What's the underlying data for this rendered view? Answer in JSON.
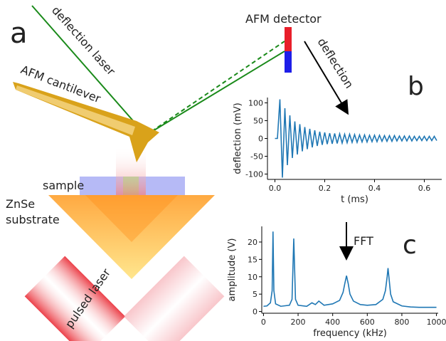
{
  "diagram": {
    "panel_a": "a",
    "panel_b": "b",
    "panel_c": "c",
    "deflection_laser": "deflection laser",
    "afm_detector": "AFM detector",
    "deflection": "deflection",
    "afm_cantilever": "AFM cantilever",
    "sample": "sample",
    "substrate_line1": "ZnSe",
    "substrate_line2": "substrate",
    "pulsed_laser": "pulsed laser",
    "fft": "FFT"
  },
  "chart_data": [
    {
      "type": "line",
      "x_label": "t (ms)",
      "y_label": "deflection (mV)",
      "color": "#1f77b4",
      "x": [
        0,
        0.01,
        0.02,
        0.03,
        0.04,
        0.05,
        0.06,
        0.07,
        0.08,
        0.09,
        0.1,
        0.11,
        0.12,
        0.13,
        0.14,
        0.15,
        0.16,
        0.17,
        0.18,
        0.19,
        0.2,
        0.21,
        0.22,
        0.23,
        0.24,
        0.25,
        0.26,
        0.27,
        0.28,
        0.29,
        0.3,
        0.31,
        0.32,
        0.33,
        0.34,
        0.35,
        0.36,
        0.37,
        0.38,
        0.39,
        0.4,
        0.41,
        0.42,
        0.43,
        0.44,
        0.45,
        0.46,
        0.47,
        0.48,
        0.49,
        0.5,
        0.51,
        0.52,
        0.53,
        0.54,
        0.55,
        0.56,
        0.57,
        0.58,
        0.59,
        0.6,
        0.61,
        0.62,
        0.63,
        0.64,
        0.65
      ],
      "values": [
        0,
        0,
        110,
        -110,
        85,
        -75,
        65,
        -55,
        48,
        -45,
        40,
        -36,
        32,
        -30,
        27,
        -25,
        23,
        -21,
        19,
        -18,
        17,
        -16,
        15,
        -15,
        14,
        -14,
        13,
        -13,
        12,
        -12,
        12,
        -11,
        11,
        -11,
        10,
        -10,
        10,
        -10,
        9,
        -9,
        9,
        -9,
        9,
        -8,
        8,
        -8,
        8,
        -8,
        8,
        -7,
        7,
        -7,
        7,
        -7,
        7,
        -7,
        6,
        -6,
        6,
        -6,
        6,
        -6,
        6,
        -6,
        6,
        -6
      ],
      "xlim": [
        -0.03,
        0.67
      ],
      "ylim": [
        -115,
        115
      ],
      "xticks": [
        {
          "value": 0,
          "label": "0.0"
        },
        0.2,
        0.4,
        0.6
      ],
      "yticks": [
        -100,
        -50,
        0,
        50,
        100
      ]
    },
    {
      "type": "line",
      "x_label": "frequency (kHz)",
      "y_label": "amplitude (V)",
      "color": "#1f77b4",
      "x": [
        0,
        20,
        40,
        50,
        55,
        60,
        70,
        100,
        150,
        165,
        175,
        185,
        200,
        250,
        280,
        300,
        320,
        350,
        400,
        440,
        460,
        470,
        480,
        490,
        500,
        520,
        560,
        600,
        650,
        690,
        705,
        715,
        720,
        725,
        735,
        750,
        800,
        850,
        900,
        950,
        1000
      ],
      "values": [
        1.5,
        1.6,
        2.5,
        6,
        23,
        6,
        2.2,
        1.5,
        1.8,
        3.5,
        21,
        3.5,
        1.8,
        1.5,
        2.5,
        2,
        3,
        1.8,
        2.2,
        3.2,
        5.5,
        8,
        10.3,
        8,
        5,
        3,
        2,
        1.8,
        2,
        3.5,
        6,
        10,
        12.5,
        10,
        5,
        2.8,
        1.6,
        1.3,
        1.2,
        1.2,
        1.2
      ],
      "xlim": [
        -10,
        1010
      ],
      "ylim": [
        -0.5,
        24.5
      ],
      "xticks": [
        0,
        200,
        400,
        600,
        800,
        1000
      ],
      "yticks": [
        0,
        5,
        10,
        15,
        20
      ]
    }
  ]
}
